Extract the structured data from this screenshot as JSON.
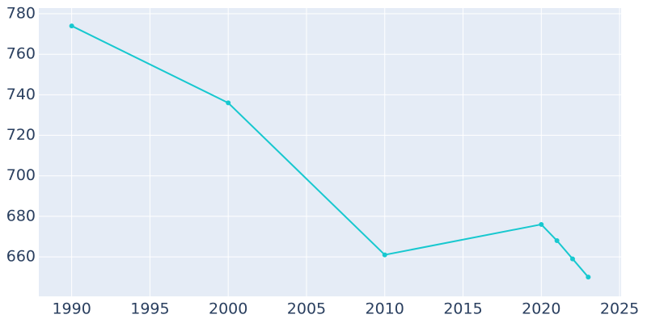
{
  "chart_data": {
    "type": "line",
    "x": [
      1990,
      2000,
      2010,
      2020,
      2021,
      2022,
      2023
    ],
    "series": [
      {
        "color": "#17c8cf",
        "values": [
          774,
          736,
          661,
          676,
          668,
          659,
          650
        ]
      }
    ],
    "xlim": [
      1987.9,
      2025.1
    ],
    "xticks": [
      1990,
      1995,
      2000,
      2005,
      2010,
      2015,
      2020,
      2025
    ],
    "ylim": [
      640.5,
      782.8
    ],
    "yticks": [
      660,
      680,
      700,
      720,
      740,
      760,
      780
    ],
    "grid": true
  }
}
